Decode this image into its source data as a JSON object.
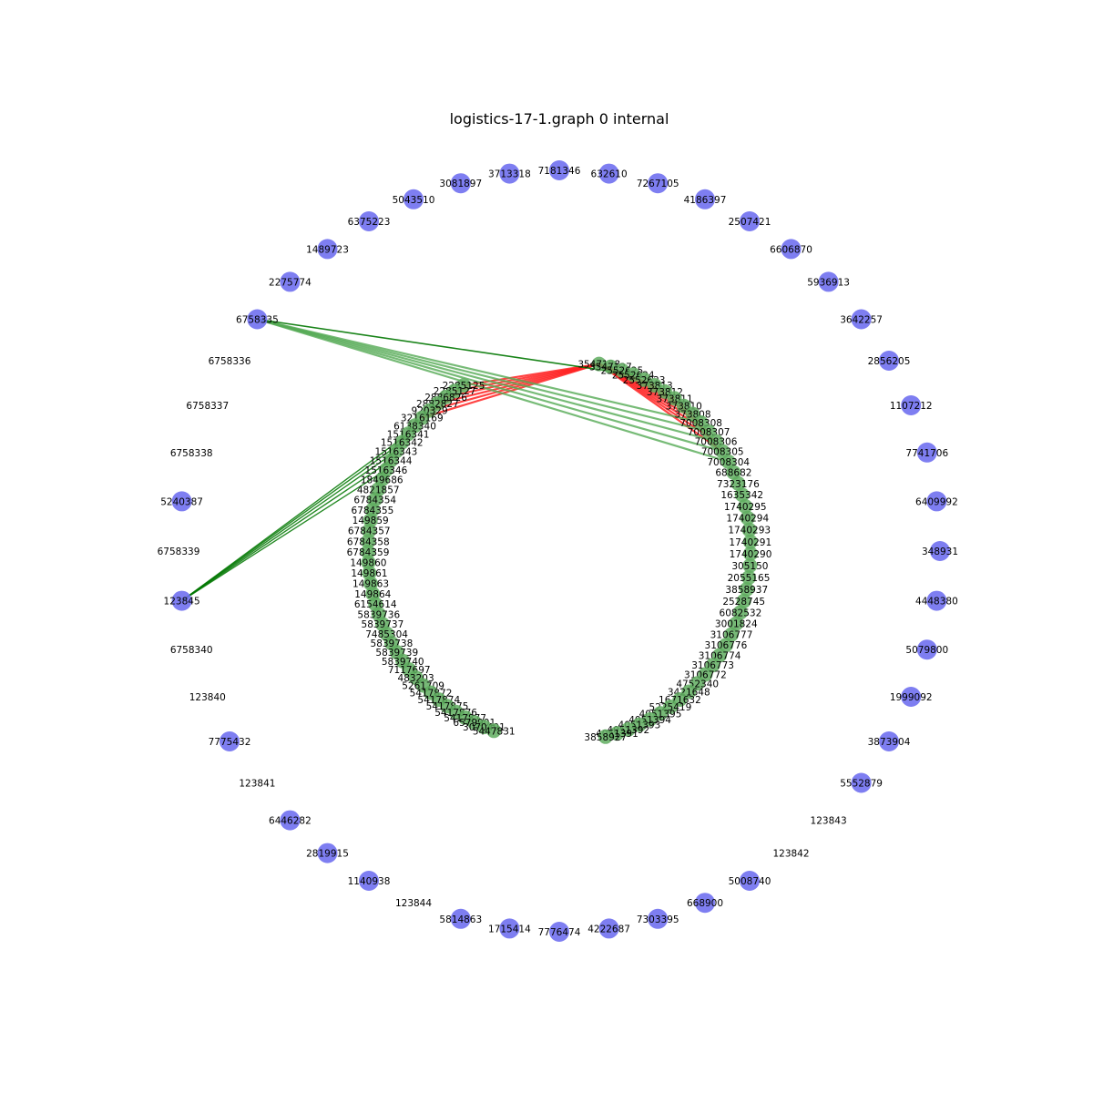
{
  "title": "logistics-17-1.graph 0 internal",
  "colors": {
    "outer_node": "#7070f0",
    "inner_node": "#5fad5f",
    "edge_green_dark": "#007700",
    "edge_green_light": "#55aa55",
    "edge_red": "#ff2222"
  },
  "outer_nodes": [
    {
      "label": "7181346",
      "dot": true
    },
    {
      "label": "632610",
      "dot": true
    },
    {
      "label": "7267105",
      "dot": true
    },
    {
      "label": "4186397",
      "dot": true
    },
    {
      "label": "2507421",
      "dot": true
    },
    {
      "label": "6606870",
      "dot": true
    },
    {
      "label": "5936913",
      "dot": true
    },
    {
      "label": "3642257",
      "dot": true
    },
    {
      "label": "2856205",
      "dot": true
    },
    {
      "label": "1107212",
      "dot": true
    },
    {
      "label": "7741706",
      "dot": true
    },
    {
      "label": "6409992",
      "dot": true
    },
    {
      "label": "348931",
      "dot": true
    },
    {
      "label": "4448380",
      "dot": true
    },
    {
      "label": "5079800",
      "dot": true
    },
    {
      "label": "1999092",
      "dot": true
    },
    {
      "label": "3873904",
      "dot": true
    },
    {
      "label": "5552879",
      "dot": true
    },
    {
      "label": "123843",
      "dot": false
    },
    {
      "label": "123842",
      "dot": false
    },
    {
      "label": "5008740",
      "dot": true
    },
    {
      "label": "668900",
      "dot": true
    },
    {
      "label": "7303395",
      "dot": true
    },
    {
      "label": "4222687",
      "dot": true
    },
    {
      "label": "7776474",
      "dot": true
    },
    {
      "label": "1715414",
      "dot": true
    },
    {
      "label": "5814863",
      "dot": true
    },
    {
      "label": "123844",
      "dot": false
    },
    {
      "label": "1140938",
      "dot": true
    },
    {
      "label": "2819915",
      "dot": true
    },
    {
      "label": "6446282",
      "dot": true
    },
    {
      "label": "123841",
      "dot": false
    },
    {
      "label": "7775432",
      "dot": true
    },
    {
      "label": "123840",
      "dot": false
    },
    {
      "label": "6758340",
      "dot": false
    },
    {
      "label": "123845",
      "dot": true
    },
    {
      "label": "6758339",
      "dot": false
    },
    {
      "label": "5240387",
      "dot": true
    },
    {
      "label": "6758338",
      "dot": false
    },
    {
      "label": "6758337",
      "dot": false
    },
    {
      "label": "6758336",
      "dot": false
    },
    {
      "label": "6758335",
      "dot": true
    },
    {
      "label": "2275774",
      "dot": true
    },
    {
      "label": "1489723",
      "dot": true
    },
    {
      "label": "6375223",
      "dot": true
    },
    {
      "label": "5043510",
      "dot": true
    },
    {
      "label": "3081897",
      "dot": true
    },
    {
      "label": "3713318",
      "dot": true
    }
  ],
  "inner_labels_right": [
    "3547128",
    "3547127",
    "2552625",
    "2552624",
    "2552623",
    "373813",
    "373812",
    "373811",
    "373810",
    "373808",
    "7008308",
    "7008307",
    "7008306",
    "7008305",
    "7008304",
    "688682",
    "7323176",
    "1635342",
    "1740295",
    "1740294",
    "1740293",
    "1740291",
    "1740290",
    "305150",
    "2055165",
    "3858937",
    "2528745",
    "6082532",
    "3001824",
    "3106777",
    "3106776",
    "3106774",
    "3106773",
    "3106772",
    "4752340",
    "3421648",
    "1671632",
    "5225419",
    "4051395",
    "4051394",
    "4051393",
    "4051392",
    "4051391",
    "3858927"
  ],
  "inner_labels_left": [
    "2285125",
    "2285127",
    "2886826",
    "2882827",
    "920329",
    "3216169",
    "6138340",
    "1516341",
    "1516342",
    "1516343",
    "1516344",
    "1516346",
    "1849686",
    "4821857",
    "6784354",
    "6784355",
    "149859",
    "6784357",
    "6784358",
    "6784359",
    "149860",
    "149861",
    "149863",
    "149864",
    "6154614",
    "5839736",
    "5839737",
    "7485304",
    "5839738",
    "5839739",
    "5839740",
    "7117697",
    "483203",
    "5261709",
    "5417872",
    "5417874",
    "5417875",
    "5417876",
    "5417877",
    "6579901",
    "3070491",
    "5447831"
  ]
}
